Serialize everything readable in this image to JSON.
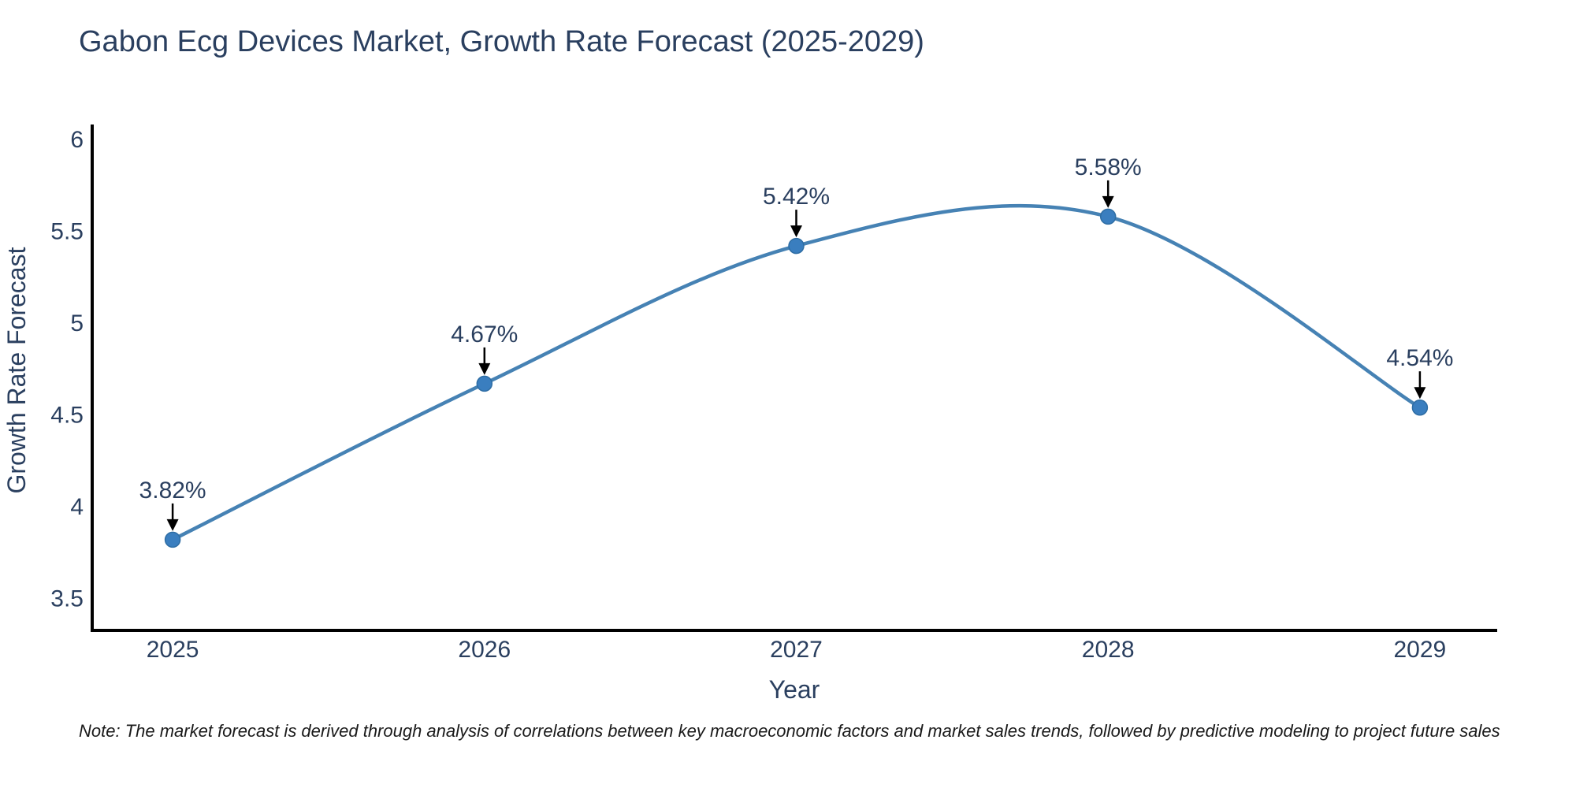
{
  "title": "Gabon Ecg Devices Market, Growth Rate Forecast (2025-2029)",
  "note": "Note: The market forecast is derived through analysis of correlations between key macroeconomic factors and market sales trends, followed by predictive modeling to project future sales",
  "chart_data": {
    "type": "line",
    "title": "Gabon Ecg Devices Market, Growth Rate Forecast (2025-2029)",
    "xlabel": "Year",
    "ylabel": "Growth Rate Forecast",
    "categories": [
      "2025",
      "2026",
      "2027",
      "2028",
      "2029"
    ],
    "x": [
      2025,
      2026,
      2027,
      2028,
      2029
    ],
    "values": [
      3.82,
      4.67,
      5.42,
      5.58,
      4.54
    ],
    "point_labels": [
      "3.82%",
      "4.67%",
      "5.42%",
      "5.58%",
      "4.54%"
    ],
    "y_ticks": [
      3.5,
      4,
      4.5,
      5,
      5.5,
      6
    ],
    "y_tick_labels": [
      "3.5",
      "4",
      "4.5",
      "5",
      "5.5",
      "6"
    ],
    "xlim": [
      2024.742,
      2029.248
    ],
    "ylim": [
      3.326,
      6.073
    ],
    "grid": false,
    "legend": "none",
    "line_shape": "spline",
    "annotation_arrows": "down",
    "colors": {
      "line": "#4682b4",
      "marker": "#3a7ebf",
      "marker_edge": "#2e6da4",
      "axis": "#000000",
      "text": "#2a3f5f",
      "annotation_arrow": "#000000",
      "note_text": "#1a1a1a",
      "background": "#ffffff"
    }
  }
}
